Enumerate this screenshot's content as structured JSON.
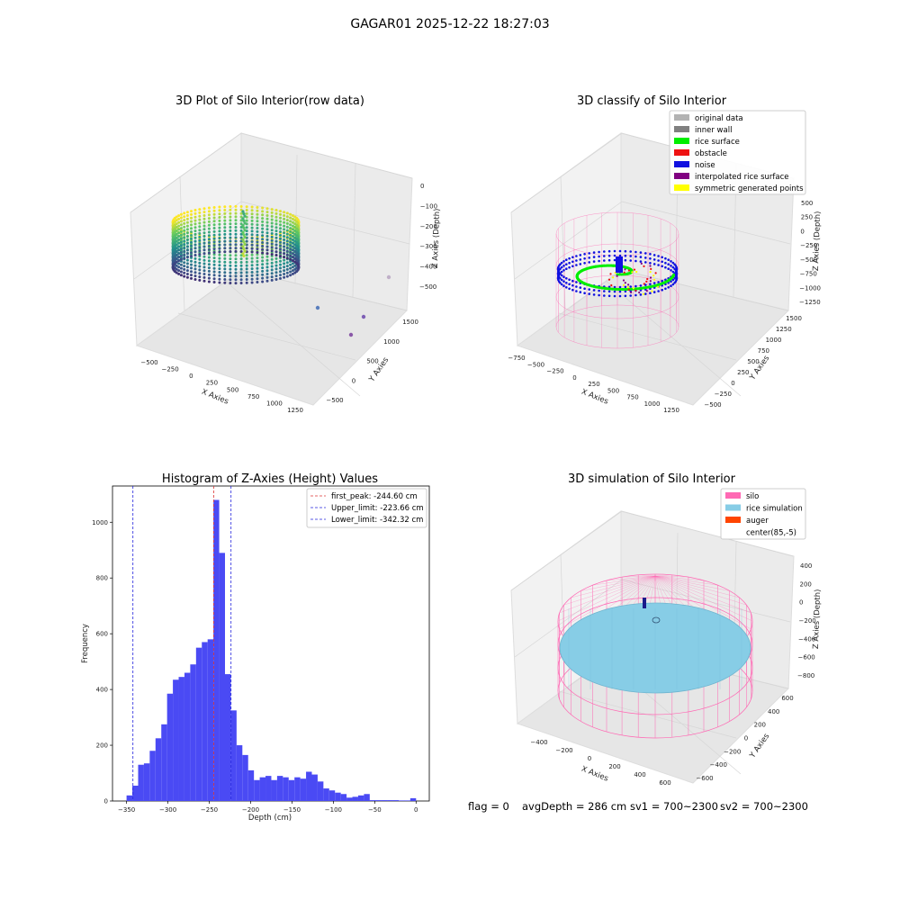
{
  "figure_title": "GAGAR01 2025-12-22 18:27:03",
  "status_line": {
    "flag": "flag = 0",
    "avg_depth": "avgDepth = 286 cm",
    "sv1": "sv1 = 700~2300",
    "sv2": "sv2 = 700~2300"
  },
  "colors": {
    "bars": "#4a4af4",
    "first_peak": "#dd3333",
    "limits": "#2222dd",
    "noise": "#1010e0",
    "rice_surface": "#00ee00",
    "silo": "#ff69b4",
    "rice_sim": "#87cde6",
    "auger": "#ff4500",
    "original": "#b3b3b3",
    "inner_wall": "#808080",
    "obstacle": "#ee1111",
    "interp": "#800080",
    "symmetric": "#ffff00"
  },
  "chart_data": [
    {
      "type": "scatter",
      "projection": "3d",
      "title": "3D Plot of Silo Interior(row data)",
      "xlabel": "X Axies",
      "ylabel": "Y Axies",
      "zlabel": "Z Axies (Depth)",
      "x_ticks": [
        "−500",
        "−250",
        "0",
        "250",
        "500",
        "750",
        "1000",
        "1250"
      ],
      "y_ticks": [
        "−500",
        "0",
        "500",
        "1000",
        "1500"
      ],
      "z_ticks": [
        "0",
        "−100",
        "−200",
        "−300",
        "−400",
        "−500"
      ],
      "colormap": "viridis",
      "outlier_points": [
        {
          "x": 950,
          "y": 600,
          "z": -520
        },
        {
          "x": 1100,
          "y": 900,
          "z": -540
        },
        {
          "x": 1300,
          "y": 1000,
          "z": -470
        },
        {
          "x": 1150,
          "y": 750,
          "z": -560
        }
      ]
    },
    {
      "type": "scatter",
      "projection": "3d",
      "title": "3D classify of Silo Interior",
      "xlabel": "X Axies",
      "ylabel": "Y Axies",
      "zlabel": "Z Axies (Depth)",
      "x_ticks": [
        "−750",
        "−500",
        "−250",
        "0",
        "250",
        "500",
        "750",
        "1000",
        "1250"
      ],
      "y_ticks": [
        "−500",
        "−250",
        "0",
        "250",
        "500",
        "750",
        "1000",
        "1250",
        "1500"
      ],
      "z_ticks": [
        "500",
        "250",
        "0",
        "−250",
        "−500",
        "−750",
        "−1000",
        "−1250"
      ],
      "legend": [
        {
          "label": "original data",
          "color": "#b3b3b3"
        },
        {
          "label": "inner wall",
          "color": "#808080"
        },
        {
          "label": "rice surface",
          "color": "#00ee00"
        },
        {
          "label": "obstacle",
          "color": "#ee1111"
        },
        {
          "label": "noise",
          "color": "#1010e0"
        },
        {
          "label": "interpolated rice surface",
          "color": "#800080"
        },
        {
          "label": "symmetric generated points",
          "color": "#ffff00"
        }
      ]
    },
    {
      "type": "bar",
      "title": "Histogram of Z-Axies (Height) Values",
      "xlabel": "Depth (cm)",
      "ylabel": "Frequency",
      "xlim": [
        -367,
        16
      ],
      "ylim": [
        0,
        1130
      ],
      "x_ticks": [
        -350,
        -300,
        -250,
        -200,
        -150,
        -100,
        -50,
        0
      ],
      "x_tick_labels": [
        "−350",
        "−300",
        "−250",
        "−200",
        "−150",
        "−100",
        "−50",
        "0"
      ],
      "y_ticks": [
        0,
        200,
        400,
        600,
        800,
        1000
      ],
      "bin_start": -350,
      "bin_width": 7,
      "values": [
        20,
        55,
        130,
        135,
        180,
        225,
        275,
        385,
        435,
        445,
        460,
        490,
        550,
        570,
        580,
        1080,
        890,
        455,
        325,
        200,
        165,
        110,
        75,
        85,
        90,
        75,
        90,
        85,
        75,
        85,
        80,
        105,
        95,
        70,
        45,
        38,
        30,
        25,
        12,
        15,
        20,
        25,
        3,
        3,
        3,
        3,
        3,
        2,
        2,
        10
      ],
      "lines": [
        {
          "name": "first_peak: -244.60 cm",
          "x": -244.6,
          "color": "#dd3333"
        },
        {
          "name": "Upper_limit: -223.66 cm",
          "x": -223.66,
          "color": "#2222dd"
        },
        {
          "name": "Lower_limit: -342.32 cm",
          "x": -342.32,
          "color": "#2222dd"
        }
      ]
    },
    {
      "type": "surface",
      "projection": "3d",
      "title": "3D simulation of Silo Interior",
      "xlabel": "X Axies",
      "ylabel": "Y Axies",
      "zlabel": "Z Axies (Depth)",
      "x_ticks": [
        "−400",
        "−200",
        "0",
        "200",
        "400",
        "600"
      ],
      "y_ticks": [
        "−600",
        "−400",
        "−200",
        "0",
        "200",
        "400",
        "600"
      ],
      "z_ticks": [
        "400",
        "200",
        "0",
        "−200",
        "−400",
        "−600",
        "−800"
      ],
      "legend": [
        {
          "label": "silo",
          "color": "#ff69b4"
        },
        {
          "label": "rice simulation",
          "color": "#87cde6"
        },
        {
          "label": "auger",
          "color": "#ff4500"
        },
        {
          "label": "center(85,-5)",
          "color": ""
        }
      ]
    }
  ]
}
